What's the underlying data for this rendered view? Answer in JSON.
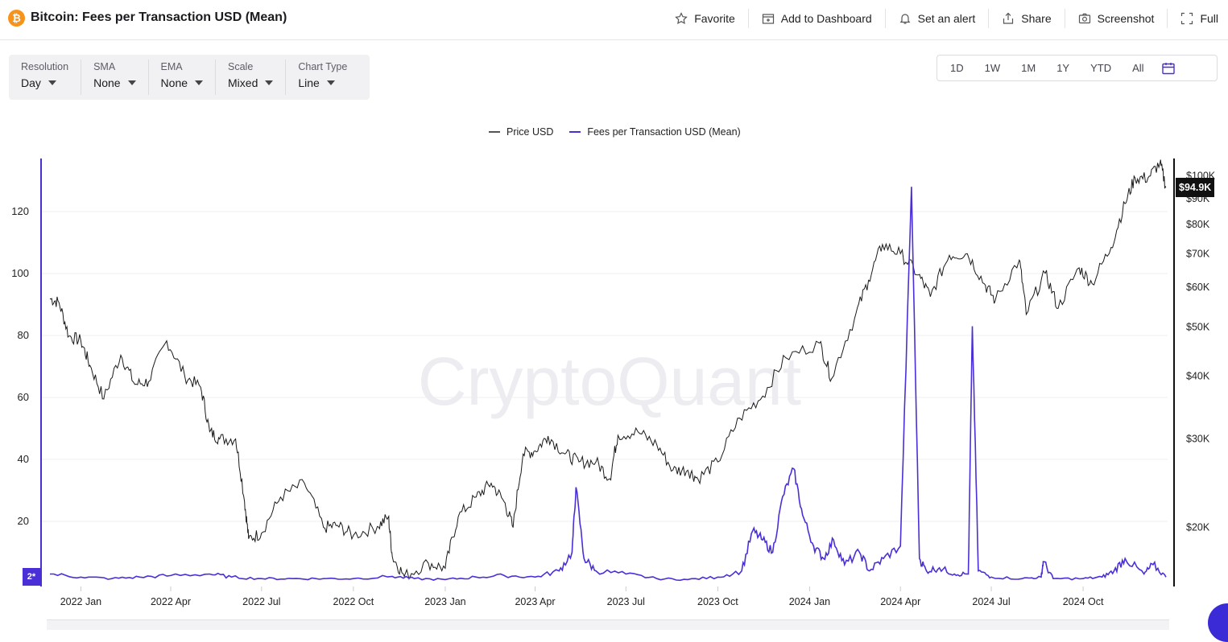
{
  "header": {
    "logo_glyph": "₿",
    "title": "Bitcoin: Fees per Transaction USD (Mean)",
    "actions": [
      {
        "label": "Favorite",
        "icon": "star-icon"
      },
      {
        "label": "Add to Dashboard",
        "icon": "dashboard-add-icon"
      },
      {
        "label": "Set an alert",
        "icon": "bell-icon"
      },
      {
        "label": "Share",
        "icon": "share-icon"
      },
      {
        "label": "Screenshot",
        "icon": "camera-icon"
      },
      {
        "label": "Full",
        "icon": "fullscreen-icon"
      }
    ]
  },
  "controls": [
    {
      "label": "Resolution",
      "value": "Day"
    },
    {
      "label": "SMA",
      "value": "None"
    },
    {
      "label": "EMA",
      "value": "None"
    },
    {
      "label": "Scale",
      "value": "Mixed"
    },
    {
      "label": "Chart Type",
      "value": "Line"
    }
  ],
  "ranges": [
    "1D",
    "1W",
    "1M",
    "1Y",
    "YTD",
    "All"
  ],
  "badge": "2*",
  "price_tag": "$94.9K",
  "watermark": "CryptoQuant",
  "colors": {
    "fees": "#4b2fd6",
    "price": "#1a1a1a",
    "brand": "#f7931a"
  },
  "chart_data": {
    "type": "line",
    "title": "Bitcoin: Fees per Transaction USD (Mean)",
    "legend_position": "top-center",
    "grid": true,
    "x_ticks": [
      "2022 Jan",
      "2022 Apr",
      "2022 Jul",
      "2022 Oct",
      "2023 Jan",
      "2023 Apr",
      "2023 Jul",
      "2023 Oct",
      "2024 Jan",
      "2024 Apr",
      "2024 Jul",
      "2024 Oct"
    ],
    "y_left": {
      "ticks": [
        20,
        40,
        60,
        80,
        100,
        120
      ],
      "range": [
        0,
        133
      ],
      "scale": "linear"
    },
    "y_right": {
      "ticks": [
        "$20K",
        "$30K",
        "$40K",
        "$50K",
        "$60K",
        "$70K",
        "$80K",
        "$90K",
        "$100K"
      ],
      "tick_values": [
        20000,
        30000,
        40000,
        50000,
        60000,
        70000,
        80000,
        90000,
        100000
      ],
      "scale": "log",
      "range": [
        15500,
        102000
      ]
    },
    "series": [
      {
        "name": "Price USD",
        "axis": "right",
        "x": [
          "2021-12-01",
          "2021-12-10",
          "2021-12-20",
          "2022-01-01",
          "2022-01-10",
          "2022-01-24",
          "2022-02-10",
          "2022-02-24",
          "2022-03-10",
          "2022-03-28",
          "2022-04-15",
          "2022-05-01",
          "2022-05-10",
          "2022-05-20",
          "2022-06-05",
          "2022-06-14",
          "2022-06-18",
          "2022-07-01",
          "2022-07-20",
          "2022-08-13",
          "2022-09-01",
          "2022-09-15",
          "2022-10-01",
          "2022-10-25",
          "2022-11-05",
          "2022-11-09",
          "2022-11-21",
          "2022-12-15",
          "2023-01-01",
          "2023-01-14",
          "2023-02-01",
          "2023-02-16",
          "2023-03-01",
          "2023-03-10",
          "2023-03-20",
          "2023-04-01",
          "2023-04-14",
          "2023-05-01",
          "2023-05-15",
          "2023-06-01",
          "2023-06-15",
          "2023-06-23",
          "2023-07-13",
          "2023-08-01",
          "2023-08-17",
          "2023-09-01",
          "2023-09-11",
          "2023-10-01",
          "2023-10-23",
          "2023-11-15",
          "2023-12-08",
          "2024-01-11",
          "2024-01-23",
          "2024-02-15",
          "2024-02-29",
          "2024-03-14",
          "2024-04-01",
          "2024-04-19",
          "2024-05-01",
          "2024-05-20",
          "2024-06-07",
          "2024-06-24",
          "2024-07-05",
          "2024-07-29",
          "2024-08-05",
          "2024-08-24",
          "2024-09-06",
          "2024-09-27",
          "2024-10-10",
          "2024-10-29",
          "2024-11-12",
          "2024-11-22",
          "2024-12-05",
          "2024-12-17",
          "2024-12-23"
        ],
        "values": [
          57000,
          56000,
          48000,
          47000,
          42000,
          36000,
          44000,
          38500,
          39000,
          47000,
          40000,
          38000,
          31000,
          30000,
          30000,
          22500,
          19000,
          19500,
          23000,
          24500,
          20000,
          20200,
          19300,
          20100,
          21000,
          17500,
          16000,
          17000,
          16600,
          21000,
          23000,
          24500,
          22500,
          20000,
          28000,
          28400,
          30400,
          28000,
          27000,
          27000,
          25000,
          30500,
          31000,
          29200,
          26000,
          26000,
          25000,
          27000,
          33000,
          36500,
          43500,
          46500,
          39500,
          52000,
          62000,
          73000,
          70000,
          63500,
          57500,
          69500,
          70000,
          61000,
          56500,
          68000,
          53000,
          64000,
          54500,
          65600,
          61000,
          72000,
          88000,
          99000,
          99000,
          106000,
          94900
        ]
      },
      {
        "name": "Fees per Transaction USD (Mean)",
        "axis": "left",
        "x": [
          "2021-12-01",
          "2022-01-01",
          "2022-02-01",
          "2022-03-01",
          "2022-04-01",
          "2022-05-10",
          "2022-06-01",
          "2022-07-01",
          "2022-08-01",
          "2022-09-01",
          "2022-10-01",
          "2022-11-09",
          "2022-12-01",
          "2023-01-01",
          "2023-02-01",
          "2023-03-01",
          "2023-04-01",
          "2023-04-25",
          "2023-05-08",
          "2023-05-12",
          "2023-05-20",
          "2023-06-01",
          "2023-07-01",
          "2023-08-01",
          "2023-09-01",
          "2023-10-01",
          "2023-10-25",
          "2023-11-05",
          "2023-11-15",
          "2023-11-25",
          "2023-12-05",
          "2023-12-16",
          "2023-12-25",
          "2024-01-05",
          "2024-01-15",
          "2024-01-25",
          "2024-02-05",
          "2024-02-20",
          "2024-03-01",
          "2024-03-15",
          "2024-04-01",
          "2024-04-12",
          "2024-04-20",
          "2024-04-27",
          "2024-05-10",
          "2024-05-25",
          "2024-06-08",
          "2024-06-12",
          "2024-06-18",
          "2024-07-01",
          "2024-08-01",
          "2024-08-20",
          "2024-08-22",
          "2024-09-01",
          "2024-10-01",
          "2024-10-20",
          "2024-11-01",
          "2024-11-12",
          "2024-12-01",
          "2024-12-10",
          "2024-12-23"
        ],
        "values": [
          3,
          2,
          1.5,
          2,
          2.5,
          3,
          2,
          1.5,
          1.5,
          1.5,
          1.5,
          2.2,
          1.5,
          1.2,
          2,
          2.5,
          2,
          4,
          10,
          31,
          8,
          4,
          3,
          1.5,
          1.2,
          2,
          4,
          17,
          14,
          10,
          28,
          37,
          22,
          12,
          8,
          14,
          6,
          10,
          4,
          8,
          12,
          128,
          8,
          4,
          5,
          3,
          3,
          83,
          4,
          2,
          1.5,
          2,
          7,
          1.5,
          1.5,
          2,
          4,
          8,
          3,
          6,
          2
        ]
      }
    ]
  }
}
